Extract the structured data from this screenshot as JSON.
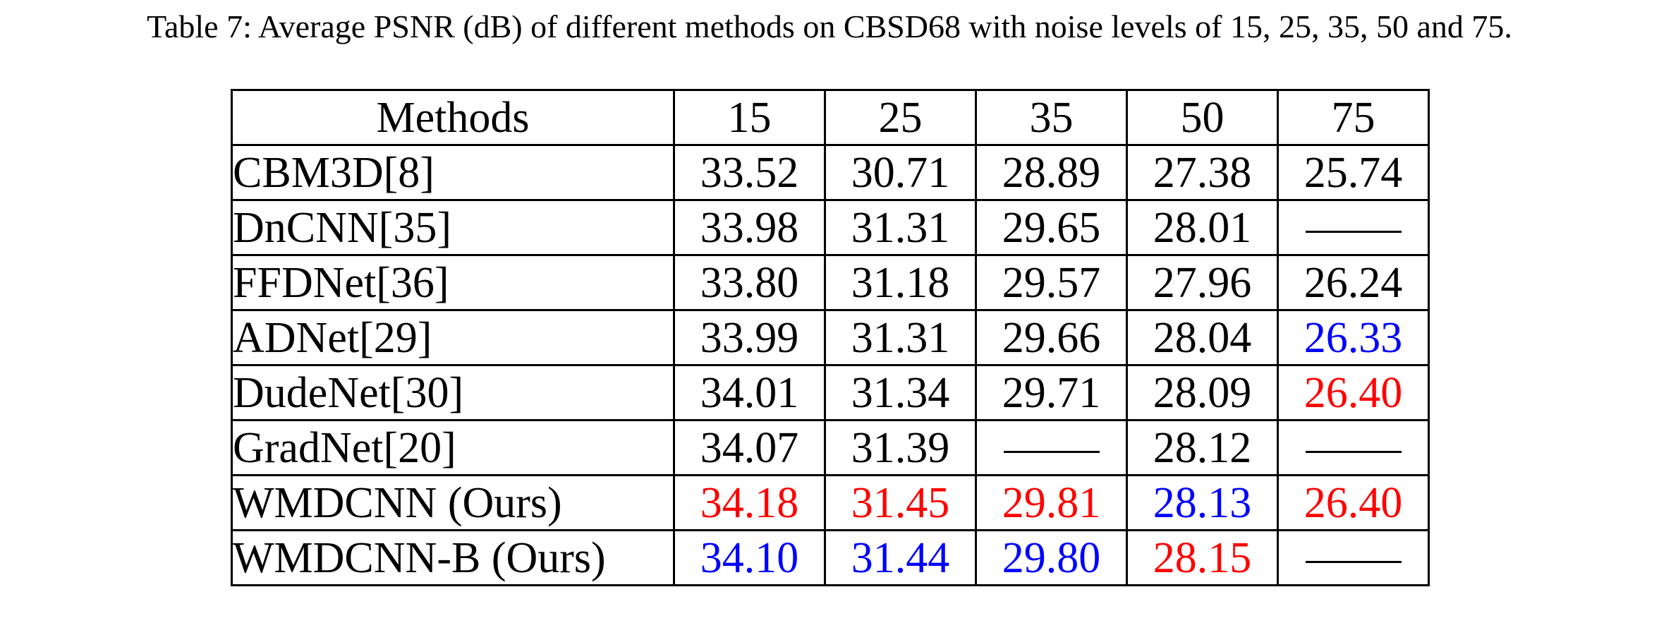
{
  "caption": "Table 7: Average PSNR (dB) of different methods on CBSD68 with noise levels of 15, 25, 35, 50 and 75.",
  "colors": {
    "best": "#ff0000",
    "second": "#0000ff",
    "normal": "#000000"
  },
  "table": {
    "headers": [
      "Methods",
      "15",
      "25",
      "35",
      "50",
      "75"
    ],
    "rows": [
      {
        "method": "CBM3D[8]",
        "cells": [
          {
            "v": "33.52",
            "c": "black"
          },
          {
            "v": "30.71",
            "c": "black"
          },
          {
            "v": "28.89",
            "c": "black"
          },
          {
            "v": "27.38",
            "c": "black"
          },
          {
            "v": "25.74",
            "c": "black"
          }
        ]
      },
      {
        "method": "DnCNN[35]",
        "cells": [
          {
            "v": "33.98",
            "c": "black"
          },
          {
            "v": "31.31",
            "c": "black"
          },
          {
            "v": "29.65",
            "c": "black"
          },
          {
            "v": "28.01",
            "c": "black"
          },
          {
            "v": null,
            "c": "black"
          }
        ]
      },
      {
        "method": "FFDNet[36]",
        "cells": [
          {
            "v": "33.80",
            "c": "black"
          },
          {
            "v": "31.18",
            "c": "black"
          },
          {
            "v": "29.57",
            "c": "black"
          },
          {
            "v": "27.96",
            "c": "black"
          },
          {
            "v": "26.24",
            "c": "black"
          }
        ]
      },
      {
        "method": "ADNet[29]",
        "cells": [
          {
            "v": "33.99",
            "c": "black"
          },
          {
            "v": "31.31",
            "c": "black"
          },
          {
            "v": "29.66",
            "c": "black"
          },
          {
            "v": "28.04",
            "c": "black"
          },
          {
            "v": "26.33",
            "c": "blue"
          }
        ]
      },
      {
        "method": "DudeNet[30]",
        "cells": [
          {
            "v": "34.01",
            "c": "black"
          },
          {
            "v": "31.34",
            "c": "black"
          },
          {
            "v": "29.71",
            "c": "black"
          },
          {
            "v": "28.09",
            "c": "black"
          },
          {
            "v": "26.40",
            "c": "red"
          }
        ]
      },
      {
        "method": "GradNet[20]",
        "cells": [
          {
            "v": "34.07",
            "c": "black"
          },
          {
            "v": "31.39",
            "c": "black"
          },
          {
            "v": null,
            "c": "black"
          },
          {
            "v": "28.12",
            "c": "black"
          },
          {
            "v": null,
            "c": "black"
          }
        ]
      },
      {
        "method": "WMDCNN (Ours)",
        "cells": [
          {
            "v": "34.18",
            "c": "red"
          },
          {
            "v": "31.45",
            "c": "red"
          },
          {
            "v": "29.81",
            "c": "red"
          },
          {
            "v": "28.13",
            "c": "blue"
          },
          {
            "v": "26.40",
            "c": "red"
          }
        ]
      },
      {
        "method": "WMDCNN-B (Ours)",
        "cells": [
          {
            "v": "34.10",
            "c": "blue"
          },
          {
            "v": "31.44",
            "c": "blue"
          },
          {
            "v": "29.80",
            "c": "blue"
          },
          {
            "v": "28.15",
            "c": "red"
          },
          {
            "v": null,
            "c": "black"
          }
        ]
      }
    ]
  }
}
